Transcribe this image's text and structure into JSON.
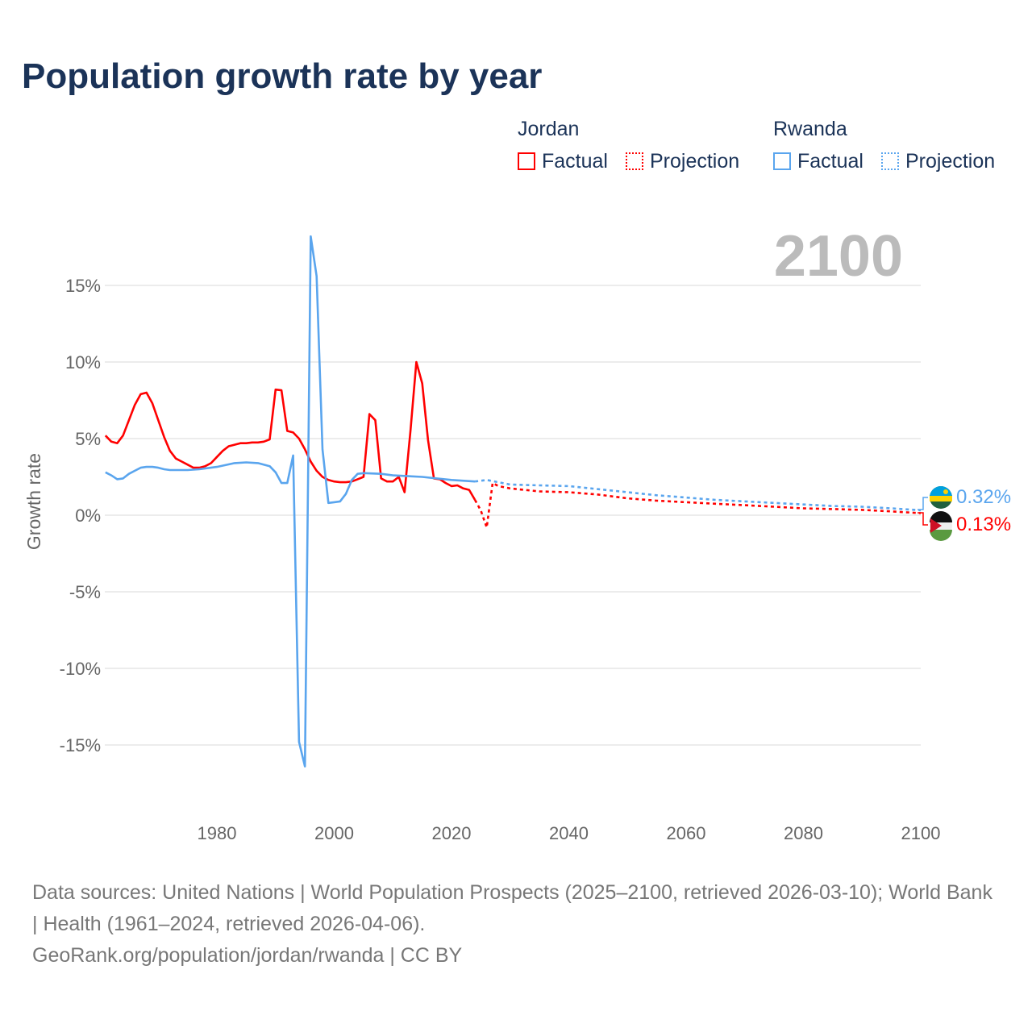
{
  "title": "Population growth rate by year",
  "legend": {
    "groups": [
      {
        "name": "Jordan",
        "factual": "Factual",
        "projection": "Projection",
        "color": "#ff0000"
      },
      {
        "name": "Rwanda",
        "factual": "Factual",
        "projection": "Projection",
        "color": "#5aa5ee"
      }
    ]
  },
  "footer": {
    "line1": "Data sources: United Nations | World Population Prospects (2025–2100, retrieved 2026-03-10); World Bank | Health (1961–2024, retrieved 2026-04-06).",
    "line2": "GeoRank.org/population/jordan/rwanda | CC BY"
  },
  "chart_data": {
    "type": "line",
    "title": "Population growth rate by year",
    "ylabel": "Growth rate",
    "xlabel": "",
    "xlim": [
      1961,
      2100
    ],
    "ylim": [
      -18,
      19
    ],
    "xticks": [
      1980,
      2000,
      2020,
      2040,
      2060,
      2080,
      2100
    ],
    "yticks": [
      {
        "v": 15,
        "l": "15%"
      },
      {
        "v": 10,
        "l": "10%"
      },
      {
        "v": 5,
        "l": "5%"
      },
      {
        "v": 0,
        "l": "0%"
      },
      {
        "v": -5,
        "l": "-5%"
      },
      {
        "v": -10,
        "l": "-10%"
      },
      {
        "v": -15,
        "l": "-15%"
      }
    ],
    "current_year": "2100",
    "series": [
      {
        "name": "Jordan",
        "kind": "Factual",
        "color": "#ff0000",
        "x": [
          1961,
          1962,
          1963,
          1964,
          1965,
          1966,
          1967,
          1968,
          1969,
          1970,
          1971,
          1972,
          1973,
          1974,
          1975,
          1976,
          1977,
          1978,
          1979,
          1980,
          1981,
          1982,
          1983,
          1984,
          1985,
          1986,
          1987,
          1988,
          1989,
          1990,
          1991,
          1992,
          1993,
          1994,
          1995,
          1996,
          1997,
          1998,
          1999,
          2000,
          2001,
          2002,
          2003,
          2004,
          2005,
          2006,
          2007,
          2008,
          2009,
          2010,
          2011,
          2012,
          2013,
          2014,
          2015,
          2016,
          2017,
          2018,
          2019,
          2020,
          2021,
          2022,
          2023,
          2024
        ],
        "y": [
          5.2,
          4.8,
          4.7,
          5.2,
          6.2,
          7.2,
          7.9,
          8.0,
          7.3,
          6.2,
          5.1,
          4.2,
          3.7,
          3.5,
          3.3,
          3.1,
          3.1,
          3.2,
          3.4,
          3.8,
          4.2,
          4.5,
          4.6,
          4.7,
          4.7,
          4.75,
          4.75,
          4.8,
          4.95,
          8.2,
          8.15,
          5.5,
          5.4,
          5.0,
          4.3,
          3.5,
          2.9,
          2.5,
          2.3,
          2.2,
          2.15,
          2.15,
          2.2,
          2.35,
          2.5,
          6.6,
          6.2,
          2.4,
          2.2,
          2.2,
          2.5,
          1.5,
          5.5,
          10.0,
          8.6,
          4.9,
          2.4,
          2.35,
          2.1,
          1.9,
          1.95,
          1.75,
          1.65,
          1.0
        ]
      },
      {
        "name": "Jordan",
        "kind": "Projection",
        "color": "#ff0000",
        "x": [
          2024,
          2025,
          2026,
          2027,
          2028,
          2030,
          2035,
          2040,
          2045,
          2050,
          2055,
          2060,
          2065,
          2070,
          2075,
          2080,
          2085,
          2090,
          2095,
          2100
        ],
        "y": [
          1.0,
          0.3,
          -0.8,
          2.1,
          1.9,
          1.75,
          1.55,
          1.5,
          1.35,
          1.1,
          0.95,
          0.85,
          0.75,
          0.65,
          0.55,
          0.45,
          0.4,
          0.35,
          0.25,
          0.13
        ]
      },
      {
        "name": "Rwanda",
        "kind": "Factual",
        "color": "#5aa5ee",
        "x": [
          1961,
          1962,
          1963,
          1964,
          1965,
          1966,
          1967,
          1968,
          1969,
          1970,
          1971,
          1972,
          1975,
          1977,
          1980,
          1983,
          1985,
          1987,
          1989,
          1990,
          1991,
          1992,
          1993,
          1994,
          1995,
          1996,
          1997,
          1998,
          1999,
          2000,
          2001,
          2002,
          2003,
          2004,
          2005,
          2008,
          2010,
          2015,
          2020,
          2024
        ],
        "y": [
          2.8,
          2.6,
          2.35,
          2.4,
          2.7,
          2.9,
          3.1,
          3.15,
          3.15,
          3.1,
          3.0,
          2.95,
          2.95,
          3.0,
          3.15,
          3.4,
          3.45,
          3.4,
          3.2,
          2.8,
          2.1,
          2.1,
          3.9,
          -14.8,
          -16.4,
          18.2,
          15.6,
          4.3,
          0.8,
          0.85,
          0.9,
          1.4,
          2.3,
          2.7,
          2.75,
          2.7,
          2.6,
          2.5,
          2.3,
          2.2
        ]
      },
      {
        "name": "Rwanda",
        "kind": "Projection",
        "color": "#5aa5ee",
        "x": [
          2024,
          2026,
          2030,
          2035,
          2040,
          2045,
          2050,
          2055,
          2060,
          2065,
          2070,
          2075,
          2080,
          2085,
          2090,
          2095,
          2100
        ],
        "y": [
          2.2,
          2.3,
          2.0,
          1.95,
          1.9,
          1.7,
          1.5,
          1.3,
          1.15,
          1.0,
          0.9,
          0.8,
          0.7,
          0.6,
          0.55,
          0.45,
          0.32
        ]
      }
    ],
    "end_labels": [
      {
        "country": "Rwanda",
        "value": "0.32%",
        "color": "#5aa5ee"
      },
      {
        "country": "Jordan",
        "value": "0.13%",
        "color": "#ff0000"
      }
    ]
  }
}
